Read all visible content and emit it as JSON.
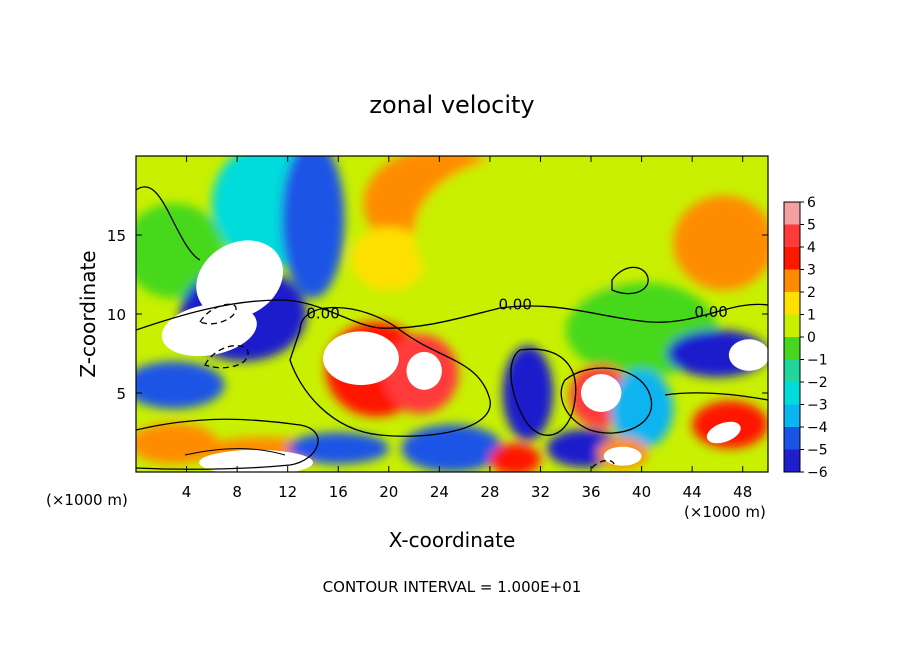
{
  "chart_data": {
    "type": "heatmap",
    "title": "zonal velocity",
    "xlabel": "X-coordinate",
    "ylabel": "Z-coordinate",
    "x_unit_label": "(×1000 m)",
    "x_unit_label_right": "(×1000 m)",
    "footer": "CONTOUR INTERVAL = 1.000E+01",
    "xlim": [
      0,
      50
    ],
    "ylim": [
      0,
      20
    ],
    "x_ticks": [
      4,
      8,
      12,
      16,
      20,
      24,
      28,
      32,
      36,
      40,
      44,
      48
    ],
    "y_ticks": [
      5,
      10,
      15
    ],
    "colorbar": {
      "levels": [
        6,
        5,
        4,
        3,
        2,
        1,
        0,
        -1,
        -2,
        -3,
        -4,
        -5,
        -6
      ],
      "colors": [
        "#f4a0a0",
        "#ff3a3a",
        "#ff1800",
        "#ff8c00",
        "#ffe000",
        "#c8f000",
        "#46d81e",
        "#21d59b",
        "#00dcdc",
        "#0ab4f0",
        "#1a54e6",
        "#1e1ecd",
        "#6a17b4"
      ],
      "vmin": -6,
      "vmax": 6
    },
    "contour_labels": [
      {
        "text": "0.00",
        "x": 14.8,
        "y": 9.7
      },
      {
        "text": "0.00",
        "x": 30.0,
        "y": 10.3
      },
      {
        "text": "0.00",
        "x": 45.5,
        "y": 9.8
      }
    ],
    "blobs": [
      {
        "x": 24,
        "y": 17,
        "rx": 6,
        "ry": 3.5,
        "v": 2.6
      },
      {
        "x": 20,
        "y": 13.5,
        "rx": 3,
        "ry": 2,
        "v": 2.4
      },
      {
        "x": 46.5,
        "y": 14.5,
        "rx": 4,
        "ry": 3,
        "v": 3.2
      },
      {
        "x": 31,
        "y": 15,
        "rx": 9,
        "ry": 5,
        "v": 0.9
      },
      {
        "x": 40,
        "y": 9,
        "rx": 6,
        "ry": 3,
        "v": 0.3
      },
      {
        "x": 11,
        "y": 17,
        "rx": 5,
        "ry": 4,
        "v": -1.6
      },
      {
        "x": 14,
        "y": 16,
        "rx": 2.5,
        "ry": 5,
        "v": -4.3
      },
      {
        "x": 3,
        "y": 14,
        "rx": 4,
        "ry": 3,
        "v": 0.4
      },
      {
        "x": 8.5,
        "y": 10,
        "rx": 5,
        "ry": 3,
        "v": -5.0
      },
      {
        "x": 3,
        "y": 5.5,
        "rx": 4,
        "ry": 1.5,
        "v": -4.2
      },
      {
        "x": 19,
        "y": 6.5,
        "rx": 4,
        "ry": 3,
        "v": 4.4
      },
      {
        "x": 22.5,
        "y": 6.2,
        "rx": 3,
        "ry": 2.5,
        "v": 4.8
      },
      {
        "x": 31,
        "y": 5,
        "rx": 2,
        "ry": 3,
        "v": -5.2
      },
      {
        "x": 36.8,
        "y": 4.8,
        "rx": 2.5,
        "ry": 2,
        "v": 5.2
      },
      {
        "x": 40,
        "y": 4,
        "rx": 2.5,
        "ry": 2.5,
        "v": -2.5
      },
      {
        "x": 46,
        "y": 7.5,
        "rx": 4,
        "ry": 1.5,
        "v": -5.0
      },
      {
        "x": 47,
        "y": 3,
        "rx": 3,
        "ry": 1.5,
        "v": 4.0
      },
      {
        "x": 3,
        "y": 1.8,
        "rx": 3.5,
        "ry": 1.3,
        "v": 3.4
      },
      {
        "x": 10,
        "y": 1.2,
        "rx": 5,
        "ry": 1,
        "v": 3.0
      },
      {
        "x": 16,
        "y": 1.5,
        "rx": 4,
        "ry": 1,
        "v": -4.0
      },
      {
        "x": 25,
        "y": 1.5,
        "rx": 4,
        "ry": 1.5,
        "v": -3.5
      },
      {
        "x": 30,
        "y": 0.8,
        "rx": 2,
        "ry": 1,
        "v": 4.0
      },
      {
        "x": 35.5,
        "y": 1.5,
        "rx": 3,
        "ry": 1.2,
        "v": -4.5
      },
      {
        "x": 38.5,
        "y": 1.2,
        "rx": 2,
        "ry": 1,
        "v": 3.5
      }
    ],
    "white_regions": [
      {
        "x": 8.2,
        "y": 12.2,
        "rx": 3.6,
        "ry": 2.3,
        "rot": -30
      },
      {
        "x": 5.8,
        "y": 9.0,
        "rx": 3.8,
        "ry": 1.6,
        "rot": -10
      },
      {
        "x": 17.8,
        "y": 7.2,
        "rx": 3.0,
        "ry": 1.7,
        "rot": 0
      },
      {
        "x": 22.8,
        "y": 6.4,
        "rx": 1.4,
        "ry": 1.2,
        "rot": 0
      },
      {
        "x": 36.8,
        "y": 5.0,
        "rx": 1.6,
        "ry": 1.2,
        "rot": 0
      },
      {
        "x": 48.5,
        "y": 7.4,
        "rx": 1.6,
        "ry": 1.0,
        "rot": 0
      },
      {
        "x": 9.5,
        "y": 0.6,
        "rx": 4.5,
        "ry": 0.8,
        "rot": 0
      },
      {
        "x": 38.5,
        "y": 1.0,
        "rx": 1.5,
        "ry": 0.6,
        "rot": 0
      },
      {
        "x": 46.5,
        "y": 2.5,
        "rx": 1.4,
        "ry": 0.6,
        "rot": -20
      }
    ]
  }
}
